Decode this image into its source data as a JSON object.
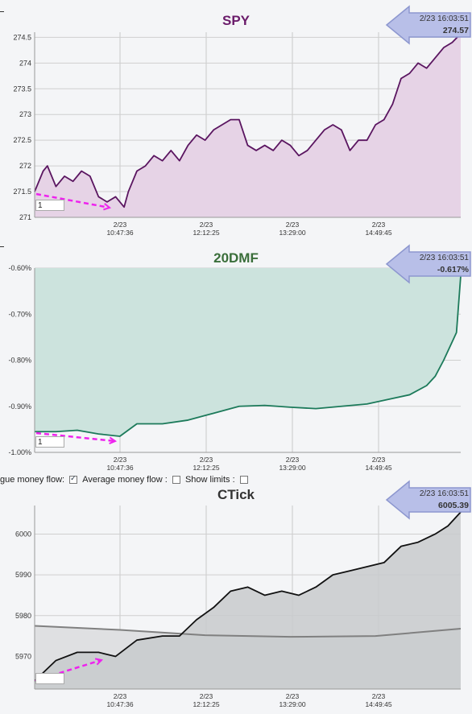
{
  "chart_data": [
    {
      "type": "area",
      "title": "SPY",
      "title_color": "#6a1b6a",
      "line_color": "#5a1560",
      "fill_color": "#e6d3e6",
      "ylim": [
        271,
        274.6
      ],
      "yticks": [
        "271",
        "271.5",
        "272",
        "272.5",
        "273",
        "273.5",
        "274",
        "274.5"
      ],
      "xticks": [
        {
          "date": "2/23",
          "time": "10:47:36"
        },
        {
          "date": "2/23",
          "time": "12:12:25"
        },
        {
          "date": "2/23",
          "time": "13:29:00"
        },
        {
          "date": "2/23",
          "time": "14:49:45"
        }
      ],
      "series": [
        {
          "values": [
            [
              0,
              271.5
            ],
            [
              0.02,
              271.9
            ],
            [
              0.03,
              272.0
            ],
            [
              0.05,
              271.6
            ],
            [
              0.07,
              271.8
            ],
            [
              0.09,
              271.7
            ],
            [
              0.11,
              271.9
            ],
            [
              0.13,
              271.8
            ],
            [
              0.15,
              271.4
            ],
            [
              0.17,
              271.3
            ],
            [
              0.19,
              271.4
            ],
            [
              0.21,
              271.2
            ],
            [
              0.22,
              271.5
            ],
            [
              0.24,
              271.9
            ],
            [
              0.26,
              272.0
            ],
            [
              0.28,
              272.2
            ],
            [
              0.3,
              272.1
            ],
            [
              0.32,
              272.3
            ],
            [
              0.34,
              272.1
            ],
            [
              0.36,
              272.4
            ],
            [
              0.38,
              272.6
            ],
            [
              0.4,
              272.5
            ],
            [
              0.42,
              272.7
            ],
            [
              0.44,
              272.8
            ],
            [
              0.46,
              272.9
            ],
            [
              0.48,
              272.9
            ],
            [
              0.5,
              272.4
            ],
            [
              0.52,
              272.3
            ],
            [
              0.54,
              272.4
            ],
            [
              0.56,
              272.3
            ],
            [
              0.58,
              272.5
            ],
            [
              0.6,
              272.4
            ],
            [
              0.62,
              272.2
            ],
            [
              0.64,
              272.3
            ],
            [
              0.66,
              272.5
            ],
            [
              0.68,
              272.7
            ],
            [
              0.7,
              272.8
            ],
            [
              0.72,
              272.7
            ],
            [
              0.74,
              272.3
            ],
            [
              0.76,
              272.5
            ],
            [
              0.78,
              272.5
            ],
            [
              0.8,
              272.8
            ],
            [
              0.82,
              272.9
            ],
            [
              0.84,
              273.2
            ],
            [
              0.86,
              273.7
            ],
            [
              0.88,
              273.8
            ],
            [
              0.9,
              274.0
            ],
            [
              0.92,
              273.9
            ],
            [
              0.94,
              274.1
            ],
            [
              0.96,
              274.3
            ],
            [
              0.98,
              274.4
            ],
            [
              1.0,
              274.57
            ]
          ]
        }
      ]
    },
    {
      "type": "area",
      "title": "20DMF",
      "title_color": "#3a6e3a",
      "line_color": "#1c7a5a",
      "fill_color": "#cce3dd",
      "ylim": [
        -1.0,
        -0.6
      ],
      "yticks": [
        "-1.00%",
        "-0.90%",
        "-0.80%",
        "-0.70%",
        "-0.60%"
      ],
      "xticks": [
        {
          "date": "2/23",
          "time": "10:47:36"
        },
        {
          "date": "2/23",
          "time": "12:12:25"
        },
        {
          "date": "2/23",
          "time": "13:29:00"
        },
        {
          "date": "2/23",
          "time": "14:49:45"
        }
      ],
      "series": [
        {
          "values": [
            [
              0,
              -0.955
            ],
            [
              0.05,
              -0.955
            ],
            [
              0.1,
              -0.952
            ],
            [
              0.15,
              -0.96
            ],
            [
              0.2,
              -0.965
            ],
            [
              0.24,
              -0.938
            ],
            [
              0.3,
              -0.938
            ],
            [
              0.36,
              -0.93
            ],
            [
              0.42,
              -0.915
            ],
            [
              0.48,
              -0.9
            ],
            [
              0.54,
              -0.898
            ],
            [
              0.6,
              -0.902
            ],
            [
              0.66,
              -0.905
            ],
            [
              0.72,
              -0.9
            ],
            [
              0.78,
              -0.895
            ],
            [
              0.84,
              -0.883
            ],
            [
              0.88,
              -0.875
            ],
            [
              0.92,
              -0.855
            ],
            [
              0.94,
              -0.835
            ],
            [
              0.96,
              -0.8
            ],
            [
              0.98,
              -0.76
            ],
            [
              0.99,
              -0.74
            ],
            [
              1.0,
              -0.617
            ]
          ]
        }
      ]
    },
    {
      "type": "area",
      "title": "CTick",
      "title_color": "#333333",
      "line_color": "#111111",
      "fill_color": "#c8cacd",
      "ylim": [
        5962,
        6007
      ],
      "yticks": [
        "5970",
        "5980",
        "5990",
        "6000"
      ],
      "xticks": [
        {
          "date": "2/23",
          "time": "10:47:36"
        },
        {
          "date": "2/23",
          "time": "12:12:25"
        },
        {
          "date": "2/23",
          "time": "13:29:00"
        },
        {
          "date": "2/23",
          "time": "14:49:45"
        }
      ],
      "series": [
        {
          "values": [
            [
              0,
              5964
            ],
            [
              0.05,
              5969
            ],
            [
              0.1,
              5971
            ],
            [
              0.15,
              5971
            ],
            [
              0.19,
              5970
            ],
            [
              0.24,
              5974
            ],
            [
              0.3,
              5975
            ],
            [
              0.34,
              5975
            ],
            [
              0.38,
              5979
            ],
            [
              0.42,
              5982
            ],
            [
              0.46,
              5986
            ],
            [
              0.5,
              5987
            ],
            [
              0.54,
              5985
            ],
            [
              0.58,
              5986
            ],
            [
              0.62,
              5985
            ],
            [
              0.66,
              5987
            ],
            [
              0.7,
              5990
            ],
            [
              0.74,
              5991
            ],
            [
              0.78,
              5992
            ],
            [
              0.82,
              5993
            ],
            [
              0.86,
              5997
            ],
            [
              0.9,
              5998
            ],
            [
              0.94,
              6000
            ],
            [
              0.97,
              6002
            ],
            [
              1.0,
              6005.39
            ]
          ]
        },
        {
          "values": [
            [
              0,
              5977.5
            ],
            [
              0.2,
              5976.5
            ],
            [
              0.4,
              5975.2
            ],
            [
              0.6,
              5974.8
            ],
            [
              0.8,
              5975
            ],
            [
              1.0,
              5976.8
            ]
          ]
        }
      ]
    }
  ],
  "badges": [
    {
      "time": "2/23 16:03:51",
      "value": "274.57"
    },
    {
      "time": "2/23 16:03:51",
      "value": "-0.617%"
    },
    {
      "time": "2/23 16:03:51",
      "value": "6005.39"
    }
  ],
  "inputs": [
    "1",
    "1",
    ""
  ],
  "controls": {
    "label1": "gue money flow:",
    "label2": "Average money flow :",
    "label3": "Show limits :"
  }
}
